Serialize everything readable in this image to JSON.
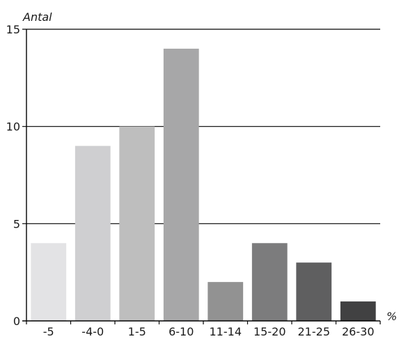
{
  "chart_data": {
    "type": "bar",
    "title": "",
    "ylabel": "Antal",
    "xlabel": "%",
    "categories": [
      "-5",
      "-4-0",
      "1-5",
      "6-10",
      "11-14",
      "15-20",
      "21-25",
      "26-30"
    ],
    "values": [
      4,
      9,
      10,
      14,
      2,
      4,
      3,
      1
    ],
    "ylim": [
      0,
      15
    ],
    "yticks": [
      "0",
      "5",
      "10",
      "15"
    ],
    "grid": true,
    "legend": "none",
    "bar_colors": [
      "#e3e3e5",
      "#cfcfd1",
      "#bebebe",
      "#a7a7a8",
      "#929292",
      "#7c7c7d",
      "#5f5f60",
      "#414142"
    ]
  }
}
